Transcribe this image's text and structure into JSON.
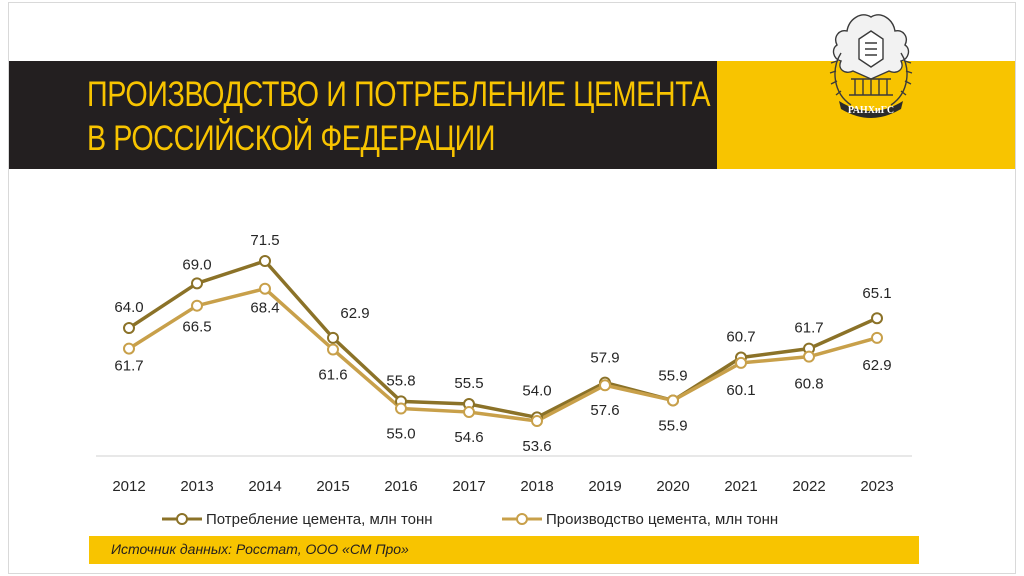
{
  "title": {
    "line1": "ПРОИЗВОДСТВО И ПОТРЕБЛЕНИЕ ЦЕМЕНТА",
    "line2": "В РОССИЙСКОЙ ФЕДЕРАЦИИ"
  },
  "logo": {
    "text": "РАНХиГС"
  },
  "source": "Источник данных: Росстат, ООО «СМ Про»",
  "colors": {
    "consumption": "#8b7228",
    "production": "#c8a04a",
    "accent": "#f8c400",
    "dark": "#231f20"
  },
  "chart_data": {
    "type": "line",
    "title": "ПРОИЗВОДСТВО И ПОТРЕБЛЕНИЕ ЦЕМЕНТА В РОССИЙСКОЙ ФЕДЕРАЦИИ",
    "xlabel": "",
    "ylabel": "",
    "ylim": [
      50,
      75
    ],
    "grid": false,
    "legend_position": "bottom",
    "categories": [
      "2012",
      "2013",
      "2014",
      "2015",
      "2016",
      "2017",
      "2018",
      "2019",
      "2020",
      "2021",
      "2022",
      "2023"
    ],
    "series": [
      {
        "name": "Потребление цемента, млн тонн",
        "values": [
          64.0,
          69.0,
          71.5,
          62.9,
          55.8,
          55.5,
          54.0,
          57.9,
          55.9,
          60.7,
          61.7,
          65.1
        ],
        "labels": [
          "64.0",
          "69.0",
          "71.5",
          "62.9",
          "55.8",
          "55.5",
          "54.0",
          "57.9",
          "55.9",
          "60.7",
          "61.7",
          "65.1"
        ]
      },
      {
        "name": "Производство цемента, млн тонн",
        "values": [
          61.7,
          66.5,
          68.4,
          61.6,
          55.0,
          54.6,
          53.6,
          57.6,
          55.9,
          60.1,
          60.8,
          62.9
        ],
        "labels": [
          "61.7",
          "66.5",
          "68.4",
          "61.6",
          "55.0",
          "54.6",
          "53.6",
          "57.6",
          "55.9",
          "60.1",
          "60.8",
          "62.9"
        ]
      }
    ]
  }
}
